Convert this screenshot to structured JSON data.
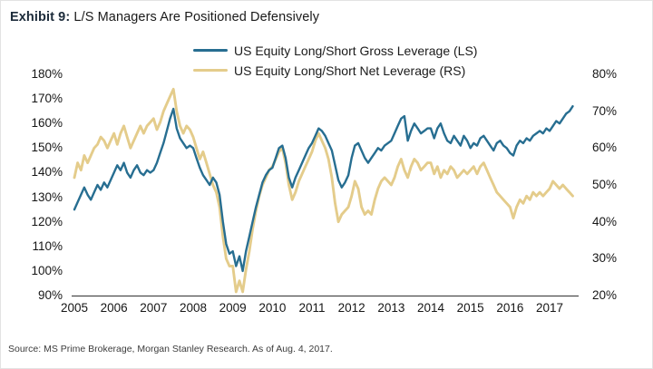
{
  "header": {
    "exhibit_label": "Exhibit 9:",
    "title": "L/S Managers Are Positioned Defensively"
  },
  "footer": {
    "source": "Source: MS Prime Brokerage, Morgan Stanley Research. As of Aug. 4, 2017."
  },
  "chart_data": {
    "type": "line",
    "title": "Exhibit 9: L/S Managers Are Positioned Defensively",
    "grid": false,
    "legend_position": "top-center",
    "x_axis": {
      "start_year": 2005,
      "months_per_point": 1,
      "tick_labels": [
        "2005",
        "2006",
        "2007",
        "2008",
        "2009",
        "2010",
        "2011",
        "2012",
        "2013",
        "2014",
        "2015",
        "2016",
        "2017"
      ]
    },
    "left_axis": {
      "min": 90,
      "max": 180,
      "tick_labels": [
        "180%",
        "170%",
        "160%",
        "150%",
        "140%",
        "130%",
        "120%",
        "110%",
        "100%",
        "90%"
      ],
      "tick_values": [
        180,
        170,
        160,
        150,
        140,
        130,
        120,
        110,
        100,
        90
      ]
    },
    "right_axis": {
      "min": 20,
      "max": 80,
      "tick_labels": [
        "80%",
        "70%",
        "60%",
        "50%",
        "40%",
        "30%",
        "20%"
      ],
      "tick_values": [
        80,
        70,
        60,
        50,
        40,
        30,
        20
      ]
    },
    "series": [
      {
        "name": "US Equity Long/Short Gross Leverage (LS)",
        "axis": "left",
        "color": "#276e91",
        "unit": "%",
        "values": [
          125,
          128,
          131,
          134,
          131,
          129,
          132,
          135,
          133,
          136,
          134,
          137,
          140,
          143,
          141,
          144,
          140,
          138,
          141,
          143,
          140,
          139,
          141,
          140,
          141,
          144,
          148,
          152,
          157,
          162,
          166,
          158,
          154,
          152,
          150,
          151,
          150,
          146,
          142,
          139,
          137,
          135,
          138,
          136,
          131,
          120,
          111,
          107,
          108,
          102,
          106,
          100,
          108,
          114,
          120,
          126,
          131,
          136,
          139,
          141,
          142,
          146,
          150,
          151,
          146,
          138,
          134,
          138,
          141,
          144,
          147,
          150,
          152,
          155,
          158,
          157,
          155,
          152,
          149,
          143,
          137,
          134,
          136,
          139,
          146,
          151,
          152,
          149,
          146,
          144,
          146,
          148,
          150,
          149,
          151,
          152,
          153,
          156,
          159,
          162,
          163,
          153,
          157,
          160,
          158,
          156,
          157,
          158,
          158,
          154,
          158,
          160,
          156,
          153,
          152,
          155,
          153,
          151,
          155,
          153,
          150,
          152,
          151,
          154,
          155,
          153,
          151,
          149,
          152,
          153,
          151,
          150,
          148,
          147,
          151,
          153,
          152,
          154,
          153,
          155,
          156,
          157,
          156,
          158,
          157,
          159,
          161,
          160,
          162,
          164,
          165,
          167
        ]
      },
      {
        "name": "US Equity Long/Short Net Leverage (RS)",
        "axis": "right",
        "color": "#e4cc8b",
        "unit": "%",
        "values": [
          52,
          56,
          54,
          58,
          56,
          58,
          60,
          61,
          63,
          62,
          60,
          62,
          64,
          61,
          64,
          66,
          63,
          60,
          62,
          64,
          66,
          64,
          66,
          67,
          68,
          65,
          67,
          70,
          72,
          74,
          76,
          70,
          66,
          64,
          66,
          65,
          63,
          60,
          57,
          59,
          56,
          53,
          50,
          48,
          44,
          36,
          30,
          28,
          28,
          21,
          24,
          21,
          27,
          32,
          38,
          43,
          47,
          50,
          52,
          54,
          55,
          57,
          59,
          60,
          56,
          50,
          46,
          48,
          51,
          53,
          55,
          57,
          59,
          62,
          64,
          62,
          60,
          57,
          52,
          45,
          40,
          42,
          43,
          44,
          47,
          51,
          49,
          44,
          42,
          43,
          42,
          46,
          49,
          51,
          52,
          51,
          50,
          52,
          55,
          57,
          54,
          52,
          55,
          57,
          56,
          54,
          55,
          56,
          56,
          53,
          55,
          52,
          54,
          53,
          55,
          54,
          52,
          53,
          54,
          53,
          54,
          55,
          53,
          55,
          56,
          54,
          52,
          50,
          48,
          47,
          46,
          45,
          44,
          41,
          44,
          46,
          45,
          47,
          46,
          48,
          47,
          48,
          47,
          48,
          49,
          51,
          50,
          49,
          50,
          49,
          48,
          47
        ]
      }
    ]
  }
}
